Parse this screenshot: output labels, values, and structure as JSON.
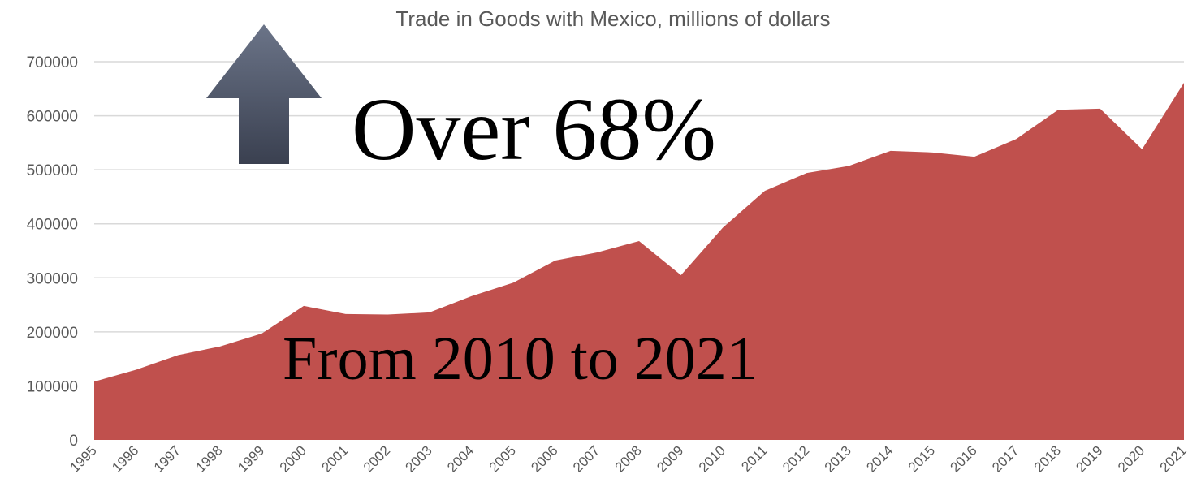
{
  "chart_data": {
    "type": "area",
    "title": "Trade in Goods with Mexico, millions of dollars",
    "xlabel": "",
    "ylabel": "",
    "x": [
      "1995",
      "1996",
      "1997",
      "1998",
      "1999",
      "2000",
      "2001",
      "2002",
      "2003",
      "2004",
      "2005",
      "2006",
      "2007",
      "2008",
      "2009",
      "2010",
      "2011",
      "2012",
      "2013",
      "2014",
      "2015",
      "2016",
      "2017",
      "2018",
      "2019",
      "2020",
      "2021"
    ],
    "series": [
      {
        "values": [
          108000,
          130000,
          157000,
          173000,
          197000,
          248000,
          233000,
          232000,
          236000,
          266000,
          291000,
          332000,
          347000,
          368000,
          305000,
          393000,
          461000,
          494000,
          507000,
          535000,
          532000,
          524000,
          557000,
          611000,
          613000,
          538000,
          661000
        ],
        "color": "#c0504d"
      }
    ],
    "ylim": [
      0,
      700000
    ],
    "yticks": [
      0,
      100000,
      200000,
      300000,
      400000,
      500000,
      600000,
      700000
    ],
    "grid": true,
    "legend": "none"
  },
  "annotations": {
    "headline": "Over 68%",
    "subline": "From 2010 to 2021",
    "arrow_icon": "up-arrow-icon"
  }
}
